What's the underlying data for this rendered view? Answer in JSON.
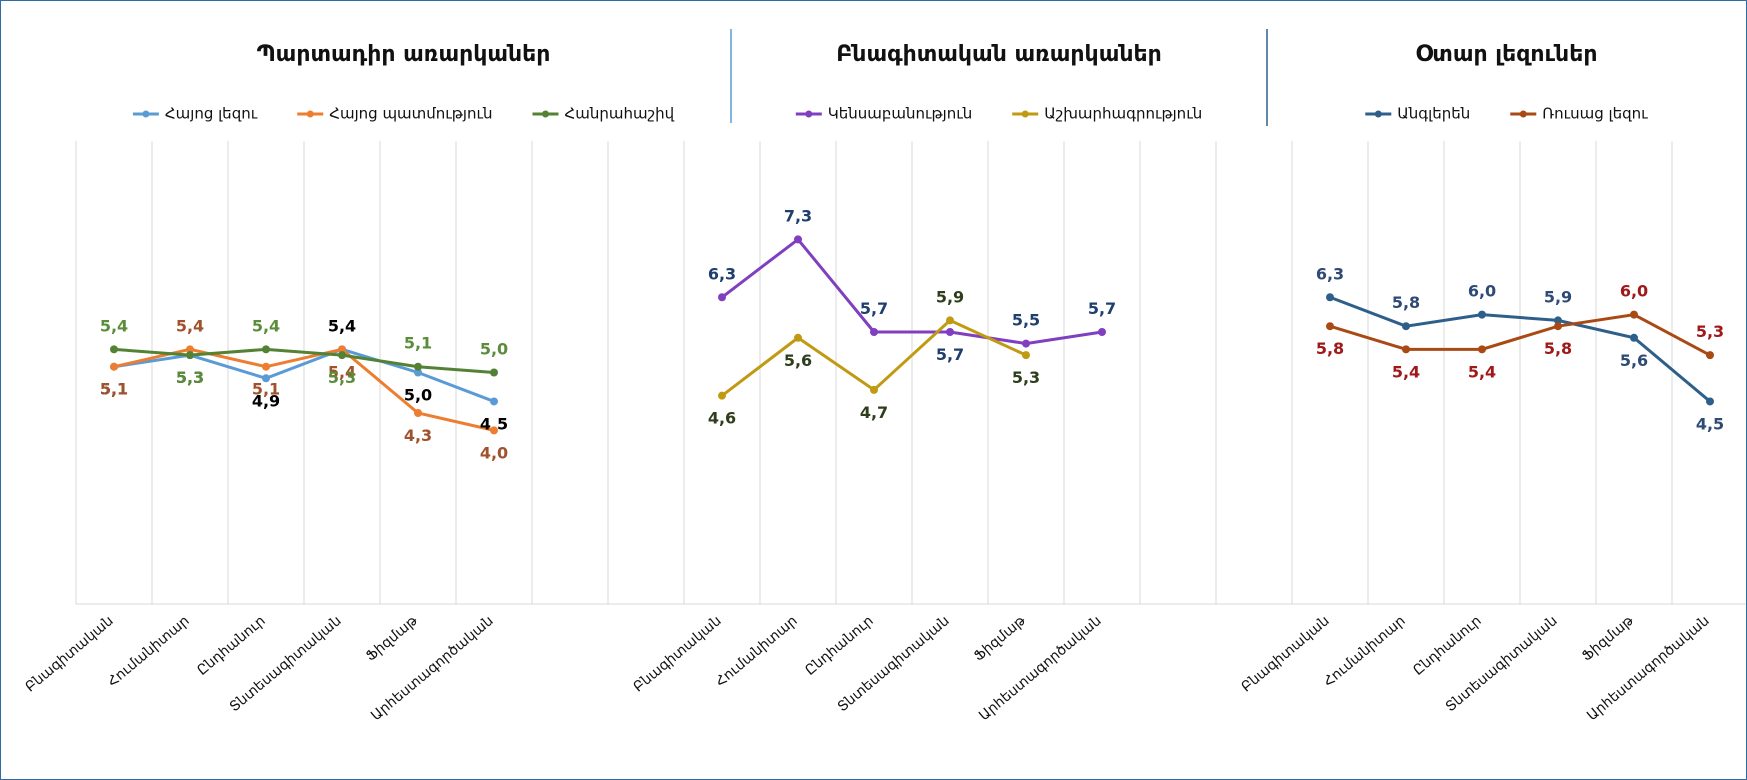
{
  "chart_data": [
    {
      "type": "line",
      "title": "Պարտադիր առարկաներ",
      "categories": [
        "Բնագիտական",
        "Հումանիտար",
        "Ընդհանուր",
        "Տնտեսագիտական",
        "Ֆիզմաթ",
        "Արհեստագործական"
      ],
      "ylim": [
        1,
        9
      ],
      "series": [
        {
          "name": "Հայոց լեզու",
          "color": "#5b9bd5",
          "label_color": "#000000",
          "values": [
            5.1,
            5.3,
            4.9,
            5.4,
            5.0,
            4.5
          ],
          "value_labels": [
            "5,1",
            "5,3",
            "4,9",
            "5,4",
            "5,0",
            "4,5"
          ]
        },
        {
          "name": "Հայոց պատմություն",
          "color": "#ed7d31",
          "label_color": "#a0522d",
          "values": [
            5.1,
            5.4,
            5.1,
            5.4,
            4.3,
            4.0
          ],
          "value_labels": [
            "5,1",
            "5,4",
            "5,1",
            "5,4",
            "4,3",
            "4,0"
          ]
        },
        {
          "name": "Հանրահաշիվ",
          "color": "#548235",
          "label_color": "#5b8c3a",
          "values": [
            5.4,
            5.3,
            5.4,
            5.3,
            5.1,
            5.0
          ],
          "value_labels": [
            "5,4",
            "5,3",
            "5,4",
            "5,3",
            "5,1",
            "5,0"
          ]
        }
      ]
    },
    {
      "type": "line",
      "title": "Բնագիտական առարկաներ",
      "categories": [
        "Բնագիտական",
        "Հումանիտար",
        "Ընդհանուր",
        "Տնտեսագիտական",
        "Ֆիզմաթ",
        "Արհեստագործական"
      ],
      "ylim": [
        1,
        9
      ],
      "series": [
        {
          "name": "Կենսաբանություն",
          "color": "#7f3fbf",
          "label_color": "#1f3f6e",
          "values": [
            6.3,
            7.3,
            5.7,
            5.7,
            5.5,
            5.7
          ],
          "value_labels": [
            "6,3",
            "7,3",
            "5,7",
            "5,7",
            "5,5",
            "5,7"
          ]
        },
        {
          "name": "Աշխարհագրություն",
          "color": "#c09a12",
          "label_color": "#2e3d1a",
          "values": [
            4.6,
            5.6,
            4.7,
            5.9,
            5.3,
            null
          ],
          "value_labels": [
            "4,6",
            "5,6",
            "4,7",
            "5,9",
            "5,3",
            null
          ]
        }
      ]
    },
    {
      "type": "line",
      "title": "Օտար լեզուներ",
      "categories": [
        "Բնագիտական",
        "Հումանիտար",
        "Ընդհանուր",
        "Տնտեսագիտական",
        "Ֆիզմաթ",
        "Արհեստագործական"
      ],
      "ylim": [
        1,
        9
      ],
      "series": [
        {
          "name": "Անգլերեն",
          "color": "#2e5f8a",
          "label_color": "#2e4a75",
          "values": [
            6.3,
            5.8,
            6.0,
            5.9,
            5.6,
            4.5
          ],
          "value_labels": [
            "6,3",
            "5,8",
            "6,0",
            "5,9",
            "5,6",
            "4,5"
          ]
        },
        {
          "name": "Ռուսաց լեզու",
          "color": "#a94a14",
          "label_color": "#a01818",
          "values": [
            5.8,
            5.4,
            5.4,
            5.8,
            6.0,
            5.3
          ],
          "value_labels": [
            "5,8",
            "5,4",
            "5,4",
            "5,8",
            "6,0",
            "5,3"
          ]
        }
      ]
    }
  ]
}
